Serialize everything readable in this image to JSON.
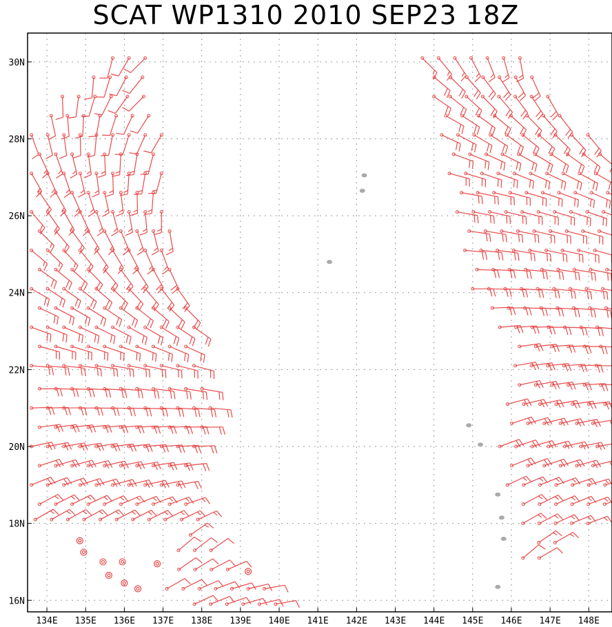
{
  "title": "SCAT WP1310 2010 SEP23 18Z",
  "colors": {
    "barb": "#e84848",
    "land": "#aaaaaa",
    "grid": "#999999",
    "frame": "#000000"
  },
  "map": {
    "lon_range": [
      133.5,
      148.6
    ],
    "lat_range": [
      15.7,
      30.75
    ],
    "lon_ticks": [
      {
        "value": 134,
        "label": "134E"
      },
      {
        "value": 135,
        "label": "135E"
      },
      {
        "value": 136,
        "label": "136E"
      },
      {
        "value": 137,
        "label": "137E"
      },
      {
        "value": 138,
        "label": "138E"
      },
      {
        "value": 139,
        "label": "139E"
      },
      {
        "value": 140,
        "label": "140E"
      },
      {
        "value": 141,
        "label": "141E"
      },
      {
        "value": 142,
        "label": "142E"
      },
      {
        "value": 143,
        "label": "143E"
      },
      {
        "value": 144,
        "label": "144E"
      },
      {
        "value": 145,
        "label": "145E"
      },
      {
        "value": 146,
        "label": "146E"
      },
      {
        "value": 147,
        "label": "147E"
      },
      {
        "value": 148,
        "label": "148E"
      }
    ],
    "lat_ticks": [
      {
        "value": 16,
        "label": "16N"
      },
      {
        "value": 18,
        "label": "18N"
      },
      {
        "value": 20,
        "label": "20N"
      },
      {
        "value": 22,
        "label": "22N"
      },
      {
        "value": 24,
        "label": "24N"
      },
      {
        "value": 26,
        "label": "26N"
      },
      {
        "value": 28,
        "label": "28N"
      },
      {
        "value": 30,
        "label": "30N"
      }
    ],
    "islands": [
      {
        "name": "island",
        "lon": 142.2,
        "lat": 27.05
      },
      {
        "name": "island",
        "lon": 142.15,
        "lat": 26.65
      },
      {
        "name": "island",
        "lon": 141.3,
        "lat": 24.8
      },
      {
        "name": "island",
        "lon": 144.9,
        "lat": 20.55
      },
      {
        "name": "island",
        "lon": 145.2,
        "lat": 20.05
      },
      {
        "name": "island",
        "lon": 145.65,
        "lat": 18.75
      },
      {
        "name": "island",
        "lon": 145.75,
        "lat": 18.15
      },
      {
        "name": "island",
        "lon": 145.8,
        "lat": 17.6
      },
      {
        "name": "island",
        "lon": 145.65,
        "lat": 16.35
      }
    ],
    "calm_points": [
      {
        "lon": 134.85,
        "lat": 17.55
      },
      {
        "lon": 134.95,
        "lat": 17.25
      },
      {
        "lon": 135.45,
        "lat": 17.0
      },
      {
        "lon": 135.95,
        "lat": 17.0
      },
      {
        "lon": 135.6,
        "lat": 16.65
      },
      {
        "lon": 136.0,
        "lat": 16.45
      },
      {
        "lon": 136.35,
        "lat": 16.3
      },
      {
        "lon": 136.85,
        "lat": 16.95
      },
      {
        "lon": 139.2,
        "lat": 16.75
      }
    ]
  },
  "wind_swaths": [
    {
      "name": "west-swath",
      "rows": [
        {
          "lat": 30.1,
          "lon_start": 135.7,
          "lon_end": 136.6,
          "step": 0.42,
          "dir_start": 195,
          "dir_end": 225,
          "speed": 10
        },
        {
          "lat": 29.6,
          "lon_start": 135.0,
          "lon_end": 136.8,
          "step": 0.42,
          "dir_start": 185,
          "dir_end": 230,
          "speed": 10
        },
        {
          "lat": 29.1,
          "lon_start": 134.4,
          "lon_end": 136.9,
          "step": 0.42,
          "dir_start": 178,
          "dir_end": 225,
          "speed": 10
        },
        {
          "lat": 28.6,
          "lon_start": 133.9,
          "lon_end": 137.0,
          "step": 0.42,
          "dir_start": 168,
          "dir_end": 220,
          "speed": 10
        },
        {
          "lat": 28.1,
          "lon_start": 133.6,
          "lon_end": 137.1,
          "step": 0.42,
          "dir_start": 160,
          "dir_end": 210,
          "speed": 10
        },
        {
          "lat": 27.6,
          "lon_start": 133.6,
          "lon_end": 137.1,
          "step": 0.42,
          "dir_start": 155,
          "dir_end": 200,
          "speed": 15
        },
        {
          "lat": 27.1,
          "lon_start": 133.6,
          "lon_end": 137.1,
          "step": 0.42,
          "dir_start": 150,
          "dir_end": 195,
          "speed": 15
        },
        {
          "lat": 26.6,
          "lon_start": 133.6,
          "lon_end": 137.1,
          "step": 0.42,
          "dir_start": 145,
          "dir_end": 190,
          "speed": 15
        },
        {
          "lat": 26.1,
          "lon_start": 133.6,
          "lon_end": 137.1,
          "step": 0.42,
          "dir_start": 140,
          "dir_end": 180,
          "speed": 15
        },
        {
          "lat": 25.6,
          "lon_start": 133.6,
          "lon_end": 137.2,
          "step": 0.42,
          "dir_start": 135,
          "dir_end": 170,
          "speed": 15
        },
        {
          "lat": 25.1,
          "lon_start": 133.6,
          "lon_end": 137.3,
          "step": 0.42,
          "dir_start": 130,
          "dir_end": 160,
          "speed": 15
        },
        {
          "lat": 24.6,
          "lon_start": 133.6,
          "lon_end": 137.3,
          "step": 0.42,
          "dir_start": 125,
          "dir_end": 155,
          "speed": 20
        },
        {
          "lat": 24.1,
          "lon_start": 133.6,
          "lon_end": 137.5,
          "step": 0.42,
          "dir_start": 120,
          "dir_end": 145,
          "speed": 20
        },
        {
          "lat": 23.6,
          "lon_start": 133.6,
          "lon_end": 137.7,
          "step": 0.42,
          "dir_start": 115,
          "dir_end": 135,
          "speed": 20
        },
        {
          "lat": 23.1,
          "lon_start": 133.6,
          "lon_end": 137.8,
          "step": 0.42,
          "dir_start": 110,
          "dir_end": 125,
          "speed": 20
        },
        {
          "lat": 22.6,
          "lon_start": 133.6,
          "lon_end": 137.9,
          "step": 0.42,
          "dir_start": 105,
          "dir_end": 115,
          "speed": 20
        },
        {
          "lat": 22.1,
          "lon_start": 133.6,
          "lon_end": 138.0,
          "step": 0.42,
          "dir_start": 95,
          "dir_end": 105,
          "speed": 20
        },
        {
          "lat": 21.5,
          "lon_start": 133.6,
          "lon_end": 138.1,
          "step": 0.42,
          "dir_start": 90,
          "dir_end": 100,
          "speed": 20
        },
        {
          "lat": 21.0,
          "lon_start": 133.6,
          "lon_end": 138.3,
          "step": 0.42,
          "dir_start": 88,
          "dir_end": 95,
          "speed": 20
        },
        {
          "lat": 20.5,
          "lon_start": 133.6,
          "lon_end": 138.4,
          "step": 0.42,
          "dir_start": 82,
          "dir_end": 90,
          "speed": 20
        },
        {
          "lat": 20.0,
          "lon_start": 133.6,
          "lon_end": 138.2,
          "step": 0.42,
          "dir_start": 78,
          "dir_end": 88,
          "speed": 20
        },
        {
          "lat": 19.5,
          "lon_start": 133.6,
          "lon_end": 137.9,
          "step": 0.42,
          "dir_start": 72,
          "dir_end": 85,
          "speed": 20
        },
        {
          "lat": 19.0,
          "lon_start": 133.6,
          "lon_end": 137.7,
          "step": 0.42,
          "dir_start": 68,
          "dir_end": 80,
          "speed": 20
        },
        {
          "lat": 18.5,
          "lon_start": 133.6,
          "lon_end": 137.9,
          "step": 0.42,
          "dir_start": 62,
          "dir_end": 72,
          "speed": 15
        },
        {
          "lat": 18.1,
          "lon_start": 133.7,
          "lon_end": 138.0,
          "step": 0.42,
          "dir_start": 60,
          "dir_end": 65,
          "speed": 15
        },
        {
          "lat": 17.7,
          "lon_start": 137.5,
          "lon_end": 138.1,
          "step": 0.42,
          "dir_start": 55,
          "dir_end": 60,
          "speed": 15
        },
        {
          "lat": 17.3,
          "lon_start": 137.4,
          "lon_end": 138.5,
          "step": 0.42,
          "dir_start": 50,
          "dir_end": 55,
          "speed": 10
        },
        {
          "lat": 16.8,
          "lon_start": 137.2,
          "lon_end": 139.0,
          "step": 0.42,
          "dir_start": 55,
          "dir_end": 70,
          "speed": 10
        },
        {
          "lat": 16.3,
          "lon_start": 137.1,
          "lon_end": 139.9,
          "step": 0.42,
          "dir_start": 60,
          "dir_end": 80,
          "speed": 10
        },
        {
          "lat": 15.9,
          "lon_start": 137.6,
          "lon_end": 140.1,
          "step": 0.42,
          "dir_start": 65,
          "dir_end": 80,
          "speed": 10
        }
      ]
    },
    {
      "name": "east-swath",
      "rows": [
        {
          "lat": 30.1,
          "lon_start": 143.7,
          "lon_end": 146.3,
          "step": 0.42,
          "dir_start": 135,
          "dir_end": 170,
          "speed": 15
        },
        {
          "lat": 29.6,
          "lon_start": 143.8,
          "lon_end": 146.8,
          "step": 0.42,
          "dir_start": 130,
          "dir_end": 160,
          "speed": 20
        },
        {
          "lat": 29.1,
          "lon_start": 144.0,
          "lon_end": 147.2,
          "step": 0.42,
          "dir_start": 125,
          "dir_end": 150,
          "speed": 20
        },
        {
          "lat": 28.6,
          "lon_start": 144.1,
          "lon_end": 147.6,
          "step": 0.42,
          "dir_start": 120,
          "dir_end": 145,
          "speed": 20
        },
        {
          "lat": 28.1,
          "lon_start": 144.2,
          "lon_end": 148.0,
          "step": 0.42,
          "dir_start": 115,
          "dir_end": 140,
          "speed": 20
        },
        {
          "lat": 27.6,
          "lon_start": 144.3,
          "lon_end": 148.5,
          "step": 0.42,
          "dir_start": 110,
          "dir_end": 130,
          "speed": 20
        },
        {
          "lat": 27.1,
          "lon_start": 144.4,
          "lon_end": 148.5,
          "step": 0.42,
          "dir_start": 105,
          "dir_end": 120,
          "speed": 20
        },
        {
          "lat": 26.6,
          "lon_start": 144.5,
          "lon_end": 148.5,
          "step": 0.42,
          "dir_start": 100,
          "dir_end": 115,
          "speed": 20
        },
        {
          "lat": 26.1,
          "lon_start": 144.6,
          "lon_end": 148.5,
          "step": 0.42,
          "dir_start": 100,
          "dir_end": 110,
          "speed": 20
        },
        {
          "lat": 25.6,
          "lon_start": 144.7,
          "lon_end": 148.5,
          "step": 0.42,
          "dir_start": 98,
          "dir_end": 108,
          "speed": 20
        },
        {
          "lat": 25.1,
          "lon_start": 144.8,
          "lon_end": 148.5,
          "step": 0.42,
          "dir_start": 95,
          "dir_end": 105,
          "speed": 20
        },
        {
          "lat": 24.6,
          "lon_start": 144.9,
          "lon_end": 148.5,
          "step": 0.42,
          "dir_start": 92,
          "dir_end": 102,
          "speed": 20
        },
        {
          "lat": 24.1,
          "lon_start": 145.0,
          "lon_end": 148.5,
          "step": 0.42,
          "dir_start": 90,
          "dir_end": 100,
          "speed": 20
        },
        {
          "lat": 23.6,
          "lon_start": 145.3,
          "lon_end": 148.5,
          "step": 0.42,
          "dir_start": 88,
          "dir_end": 98,
          "speed": 20
        },
        {
          "lat": 23.1,
          "lon_start": 145.7,
          "lon_end": 148.5,
          "step": 0.42,
          "dir_start": 85,
          "dir_end": 95,
          "speed": 20
        },
        {
          "lat": 22.6,
          "lon_start": 146.0,
          "lon_end": 148.5,
          "step": 0.42,
          "dir_start": 82,
          "dir_end": 92,
          "speed": 20
        },
        {
          "lat": 22.1,
          "lon_start": 146.1,
          "lon_end": 148.5,
          "step": 0.42,
          "dir_start": 80,
          "dir_end": 90,
          "speed": 20
        },
        {
          "lat": 21.6,
          "lon_start": 146.0,
          "lon_end": 148.5,
          "step": 0.42,
          "dir_start": 78,
          "dir_end": 88,
          "speed": 20
        },
        {
          "lat": 21.1,
          "lon_start": 145.9,
          "lon_end": 148.5,
          "step": 0.42,
          "dir_start": 75,
          "dir_end": 85,
          "speed": 20
        },
        {
          "lat": 20.6,
          "lon_start": 145.8,
          "lon_end": 148.5,
          "step": 0.42,
          "dir_start": 72,
          "dir_end": 82,
          "speed": 20
        },
        {
          "lat": 20.0,
          "lon_start": 145.7,
          "lon_end": 148.5,
          "step": 0.42,
          "dir_start": 70,
          "dir_end": 80,
          "speed": 20
        },
        {
          "lat": 19.5,
          "lon_start": 145.8,
          "lon_end": 148.5,
          "step": 0.42,
          "dir_start": 68,
          "dir_end": 78,
          "speed": 20
        },
        {
          "lat": 19.0,
          "lon_start": 145.9,
          "lon_end": 148.5,
          "step": 0.42,
          "dir_start": 65,
          "dir_end": 75,
          "speed": 15
        },
        {
          "lat": 18.5,
          "lon_start": 146.1,
          "lon_end": 148.5,
          "step": 0.42,
          "dir_start": 62,
          "dir_end": 72,
          "speed": 15
        },
        {
          "lat": 18.0,
          "lon_start": 146.3,
          "lon_end": 148.0,
          "step": 0.42,
          "dir_start": 60,
          "dir_end": 70,
          "speed": 15
        },
        {
          "lat": 17.5,
          "lon_start": 146.5,
          "lon_end": 147.4,
          "step": 0.42,
          "dir_start": 55,
          "dir_end": 65,
          "speed": 15
        },
        {
          "lat": 17.1,
          "lon_start": 146.3,
          "lon_end": 147.0,
          "step": 0.42,
          "dir_start": 50,
          "dir_end": 60,
          "speed": 10
        }
      ]
    }
  ]
}
